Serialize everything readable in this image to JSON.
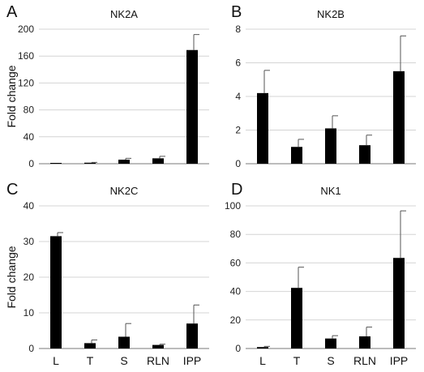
{
  "figure": {
    "ylabel": "Fold change"
  },
  "chart_data": [
    {
      "panel": "A",
      "title": "NK2A",
      "type": "bar",
      "categories": [
        "L",
        "T",
        "S",
        "RLN",
        "IPP"
      ],
      "values": [
        0.5,
        1.5,
        6,
        8,
        169
      ],
      "errors": [
        0,
        0.5,
        2,
        3,
        23
      ],
      "ylim": [
        0,
        200
      ],
      "yticks": [
        0,
        40,
        80,
        120,
        160,
        200
      ],
      "ylabel": "Fold change",
      "grid": true,
      "show_categories": false
    },
    {
      "panel": "B",
      "title": "NK2B",
      "type": "bar",
      "categories": [
        "L",
        "T",
        "S",
        "RLN",
        "IPP"
      ],
      "values": [
        4.2,
        1.0,
        2.1,
        1.1,
        5.5
      ],
      "errors": [
        1.35,
        0.45,
        0.75,
        0.6,
        2.1
      ],
      "ylim": [
        0,
        8
      ],
      "yticks": [
        0,
        2,
        4,
        6,
        8
      ],
      "ylabel": "",
      "grid": true,
      "show_categories": false
    },
    {
      "panel": "C",
      "title": "NK2C",
      "type": "bar",
      "categories": [
        "L",
        "T",
        "S",
        "RLN",
        "IPP"
      ],
      "values": [
        31.5,
        1.5,
        3.3,
        1.0,
        7.0
      ],
      "errors": [
        1.0,
        0.9,
        3.7,
        0.2,
        5.2
      ],
      "ylim": [
        0,
        40
      ],
      "yticks": [
        0,
        10,
        20,
        30,
        40
      ],
      "ylabel": "Fold change",
      "grid": true,
      "show_categories": true
    },
    {
      "panel": "D",
      "title": "NK1",
      "type": "bar",
      "categories": [
        "L",
        "T",
        "S",
        "RLN",
        "IPP"
      ],
      "values": [
        1,
        42.5,
        7,
        8.5,
        63.5
      ],
      "errors": [
        0.5,
        14.5,
        2,
        6.5,
        33
      ],
      "ylim": [
        0,
        100
      ],
      "yticks": [
        0,
        20,
        40,
        60,
        80,
        100
      ],
      "ylabel": "",
      "grid": true,
      "show_categories": true
    }
  ]
}
